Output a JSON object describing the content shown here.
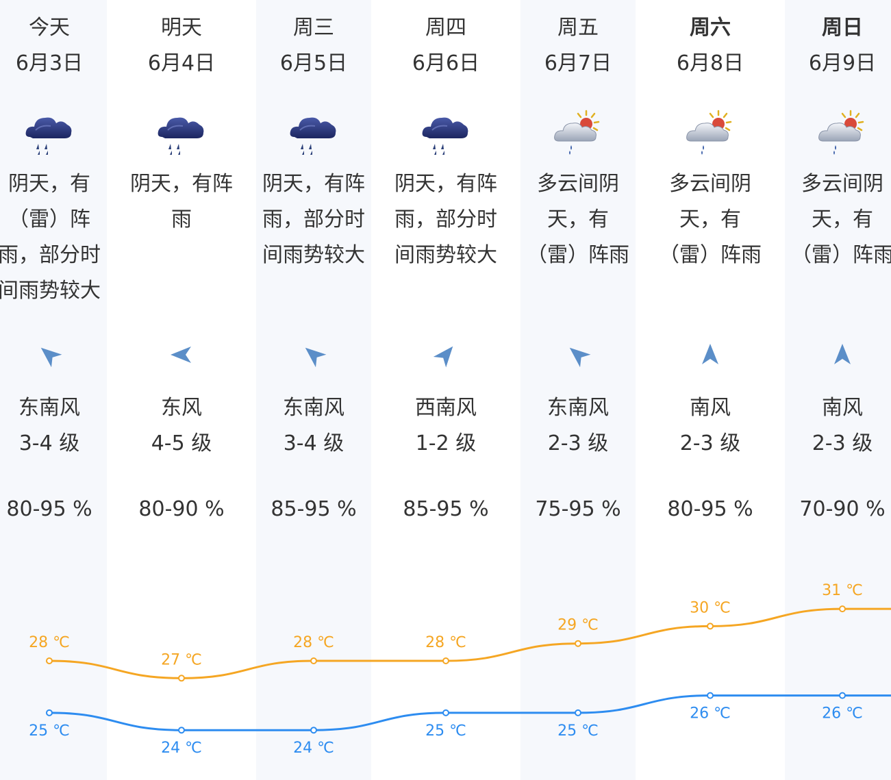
{
  "days": [
    {
      "day": "今天",
      "date": "6月3日",
      "bold": false,
      "icon": "heavy-rain-cloud-icon",
      "desc_lines": [
        "阴天，有",
        "（雷）阵",
        "雨，部分时",
        "间雨势较大"
      ],
      "wind_dir": "东南风",
      "wind_level": "3-4 级",
      "wind_icon": "wind-arrow-northwest-icon",
      "humidity": "80-95 %"
    },
    {
      "day": "明天",
      "date": "6月4日",
      "bold": false,
      "icon": "heavy-rain-cloud-icon",
      "desc_lines": [
        "阴天，有阵",
        "雨"
      ],
      "wind_dir": "东风",
      "wind_level": "4-5 级",
      "wind_icon": "wind-arrow-west-icon",
      "humidity": "80-90 %"
    },
    {
      "day": "周三",
      "date": "6月5日",
      "bold": false,
      "icon": "heavy-rain-cloud-icon",
      "desc_lines": [
        "阴天，有阵",
        "雨，部分时",
        "间雨势较大"
      ],
      "wind_dir": "东南风",
      "wind_level": "3-4 级",
      "wind_icon": "wind-arrow-northwest-icon",
      "humidity": "85-95 %"
    },
    {
      "day": "周四",
      "date": "6月6日",
      "bold": false,
      "icon": "heavy-rain-cloud-icon",
      "desc_lines": [
        "阴天，有阵",
        "雨，部分时",
        "间雨势较大"
      ],
      "wind_dir": "西南风",
      "wind_level": "1-2 级",
      "wind_icon": "wind-arrow-northeast-icon",
      "humidity": "85-95 %"
    },
    {
      "day": "周五",
      "date": "6月7日",
      "bold": false,
      "icon": "partly-cloudy-rain-icon",
      "desc_lines": [
        "多云间阴",
        "天，有",
        "（雷）阵雨"
      ],
      "wind_dir": "东南风",
      "wind_level": "2-3 级",
      "wind_icon": "wind-arrow-northwest-icon",
      "humidity": "75-95 %"
    },
    {
      "day": "周六",
      "date": "6月8日",
      "bold": true,
      "icon": "partly-cloudy-rain-icon",
      "desc_lines": [
        "多云间阴",
        "天，有",
        "（雷）阵雨"
      ],
      "wind_dir": "南风",
      "wind_level": "2-3 级",
      "wind_icon": "wind-arrow-north-icon",
      "humidity": "80-95 %"
    },
    {
      "day": "周日",
      "date": "6月9日",
      "bold": true,
      "icon": "partly-cloudy-rain-icon",
      "desc_lines": [
        "多云间阴",
        "天，有",
        "（雷）阵雨"
      ],
      "wind_dir": "南风",
      "wind_level": "2-3 级",
      "wind_icon": "wind-arrow-north-icon",
      "humidity": "70-90 %"
    }
  ],
  "chart_data": {
    "type": "line",
    "categories": [
      "6月3日",
      "6月4日",
      "6月5日",
      "6月6日",
      "6月7日",
      "6月8日",
      "6月9日"
    ],
    "series": [
      {
        "values": [
          28,
          27,
          28,
          28,
          29,
          30,
          31
        ],
        "labels": [
          "28 ℃",
          "27 ℃",
          "28 ℃",
          "28 ℃",
          "29 ℃",
          "30 ℃",
          "31 ℃"
        ],
        "color": "#f5a623"
      },
      {
        "values": [
          25,
          24,
          24,
          25,
          25,
          26,
          26
        ],
        "labels": [
          "25 ℃",
          "24 ℃",
          "24 ℃",
          "25 ℃",
          "25 ℃",
          "26 ℃",
          "26 ℃"
        ],
        "color": "#2d8cf0"
      }
    ],
    "unit": "℃",
    "grid": false
  },
  "colors": {
    "column_shade": "#f6f8fc",
    "high_temp": "#f5a623",
    "low_temp": "#2d8cf0",
    "wind_arrow": "#5b8ec8",
    "rain_cloud": "#2b3a7a"
  }
}
